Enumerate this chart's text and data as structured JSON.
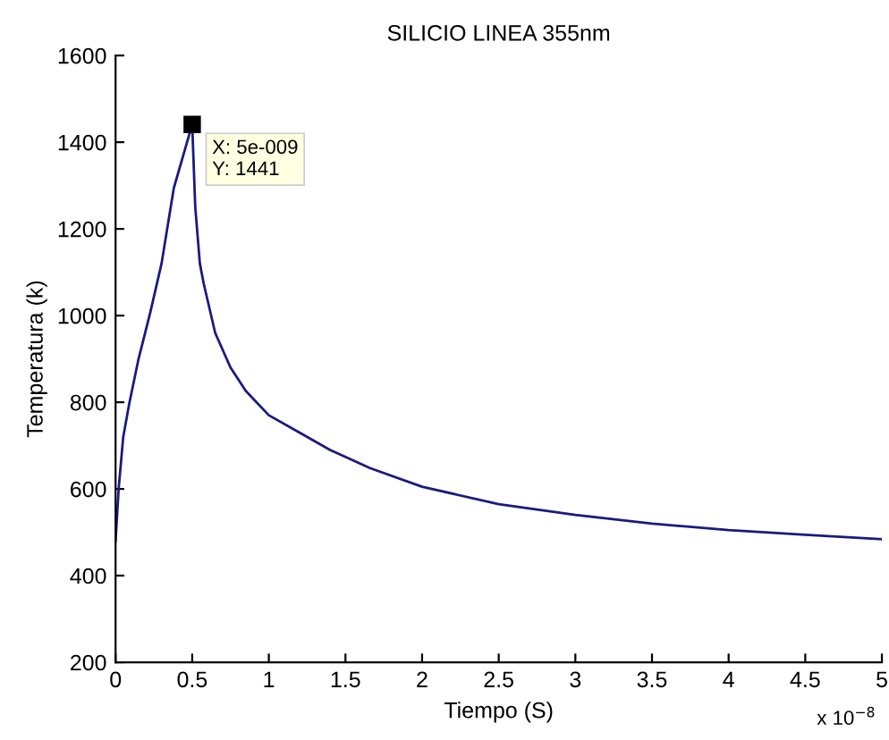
{
  "chart_data": {
    "type": "line",
    "title": "SILICIO LINEA 355nm",
    "xlabel": "Tiempo (S)",
    "ylabel": "Temperatura (k)",
    "x": [
      0,
      0.02,
      0.05,
      0.09,
      0.15,
      0.225,
      0.3,
      0.38,
      0.45,
      0.5,
      0.52,
      0.55,
      0.575,
      0.65,
      0.75,
      0.85,
      1,
      1.2,
      1.4,
      1.66,
      2,
      2.5,
      3,
      3.5,
      4,
      4.5,
      5
    ],
    "series": [
      {
        "color": "#1a1a80",
        "values": [
          480,
          600,
          720,
          798,
          900,
          1005,
          1120,
          1294,
          1380,
          1441,
          1250,
          1120,
          1074,
          960,
          880,
          826,
          770,
          730,
          690,
          648,
          605,
          565,
          540,
          520,
          505,
          494,
          484
        ]
      }
    ],
    "xlim": [
      0,
      5
    ],
    "ylim": [
      200,
      1600
    ],
    "xticks": [
      0,
      0.5,
      1,
      1.5,
      2,
      2.5,
      3,
      3.5,
      4,
      4.5,
      5
    ],
    "yticks": [
      200,
      400,
      600,
      800,
      1000,
      1200,
      1400,
      1600
    ],
    "annotations": [
      {
        "text": "X: 5e-009\nY: 1441",
        "x": 0.5,
        "y": 1441
      },
      "x 10$^{−8}$"
    ],
    "grid": false,
    "legend": false,
    "marker": "none",
    "line_style": "solid"
  }
}
